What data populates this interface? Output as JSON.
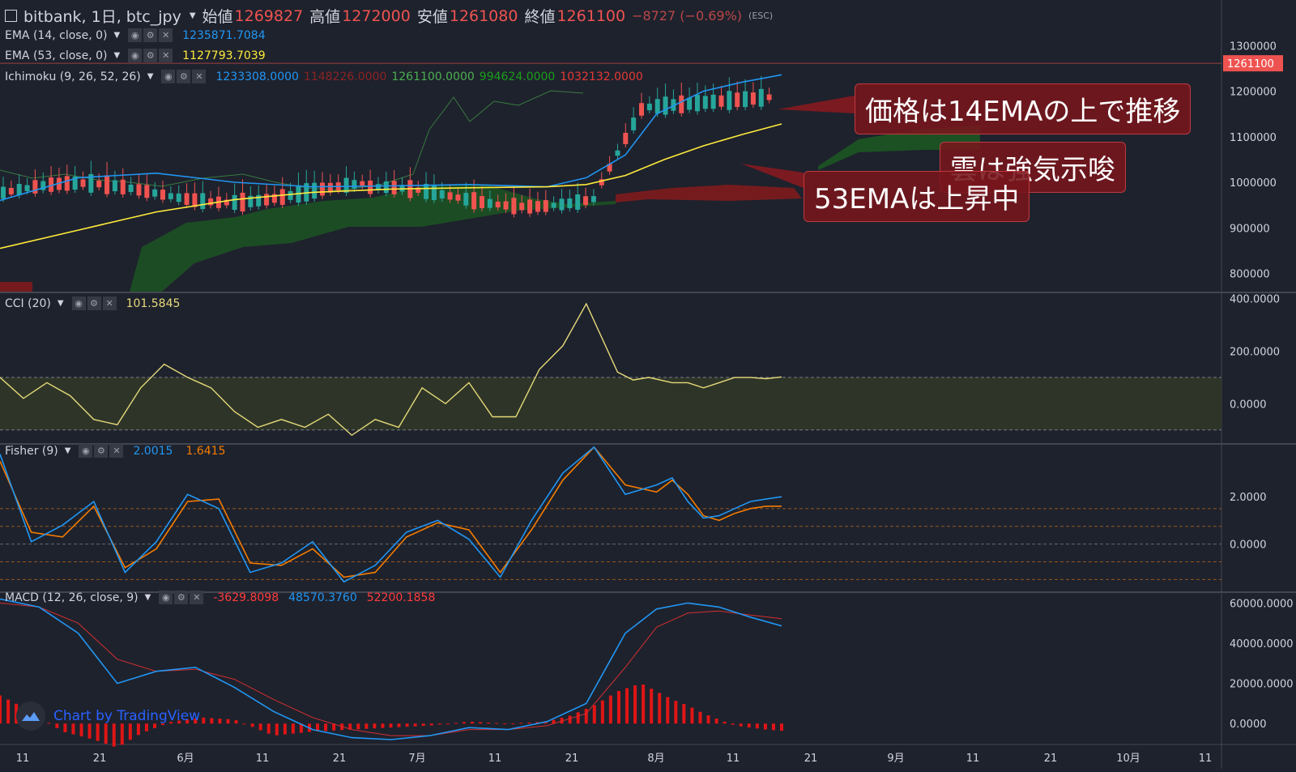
{
  "header": {
    "symbol": "bitbank, 1日, btc_jpy",
    "open_label": "始値",
    "open": "1269827",
    "high_label": "高値",
    "high": "1272000",
    "low_label": "安値",
    "low": "1261080",
    "close_label": "終値",
    "close": "1261100",
    "change": "−8727 (−0.69%)",
    "esc_hint": "(ESC)"
  },
  "legends": {
    "ema14": {
      "name": "EMA (14, close, 0)",
      "value": "1235871.7084",
      "color": "#2196f3"
    },
    "ema53": {
      "name": "EMA (53, close, 0)",
      "value": "1127793.7039",
      "color": "#ffeb3b"
    },
    "ichimoku": {
      "name": "Ichimoku (9, 26, 52, 26)",
      "values": [
        "1233308.0000",
        "1148226.0000",
        "1261100.0000",
        "994624.0000",
        "1032132.0000"
      ],
      "colors": [
        "#2196f3",
        "#8b2323",
        "#4caf50",
        "#1b9e1b",
        "#e53935"
      ]
    },
    "cci": {
      "name": "CCI (20)",
      "value": "101.5845",
      "color": "#e6d979"
    },
    "fisher": {
      "name": "Fisher (9)",
      "values": [
        "2.0015",
        "1.6415"
      ],
      "colors": [
        "#2196f3",
        "#f57c00"
      ]
    },
    "macd": {
      "name": "MACD (12, 26, close, 9)",
      "values": [
        "-3629.8098",
        "48570.3760",
        "52200.1858"
      ],
      "colors": [
        "#ff3b3b",
        "#2196f3",
        "#ff3b3b"
      ]
    }
  },
  "callouts": {
    "price_above_ema": "価格は14EMAの上で推移",
    "cloud_bullish": "雲は強気示唆",
    "ema53_rising": "53EMAは上昇中"
  },
  "watermark": "Chart by TradingView",
  "price_tag": "1261100",
  "x_ticks": [
    "11",
    "21",
    "6月",
    "11",
    "21",
    "7月",
    "11",
    "21",
    "8月",
    "11",
    "21",
    "9月",
    "11",
    "21",
    "10月",
    "11"
  ],
  "chart_data": [
    {
      "type": "line",
      "title": "bitbank, 1日, btc_jpy",
      "ylim": [
        760000,
        1400000
      ],
      "y_ticks": [
        "800000",
        "900000",
        "1000000",
        "1100000",
        "1200000",
        "1300000",
        "1400000"
      ],
      "series": [
        {
          "name": "EMA (14, close, 0)",
          "x": [
            0,
            10,
            20,
            30,
            40,
            50,
            60,
            70,
            75,
            80,
            84,
            90,
            95,
            100
          ],
          "values": [
            960000,
            1010000,
            1020000,
            1000000,
            990000,
            992000,
            995000,
            990000,
            1010000,
            1060000,
            1150000,
            1200000,
            1220000,
            1236000
          ]
        },
        {
          "name": "EMA (53, close, 0)",
          "x": [
            0,
            10,
            20,
            30,
            40,
            50,
            60,
            70,
            75,
            80,
            85,
            90,
            95,
            100
          ],
          "values": [
            855000,
            895000,
            935000,
            962000,
            978000,
            985000,
            988000,
            990000,
            995000,
            1015000,
            1050000,
            1080000,
            1105000,
            1128000
          ]
        }
      ],
      "last_price": 1261100
    },
    {
      "type": "line",
      "title": "CCI (20)",
      "ylim": [
        -150,
        420
      ],
      "y_ticks": [
        "0.0000",
        "200.0000",
        "400.0000"
      ],
      "band": [
        -100,
        100
      ],
      "series": [
        {
          "name": "CCI (20)",
          "x": [
            0,
            3,
            6,
            9,
            12,
            15,
            18,
            21,
            24,
            27,
            30,
            33,
            36,
            39,
            42,
            45,
            48,
            51,
            54,
            57,
            60,
            63,
            66,
            69,
            72,
            75,
            77,
            79,
            81,
            83,
            86,
            88,
            90,
            92,
            94,
            96,
            98,
            100
          ],
          "values": [
            100,
            20,
            80,
            30,
            -60,
            -80,
            60,
            150,
            100,
            60,
            -30,
            -90,
            -60,
            -90,
            -40,
            -120,
            -60,
            -90,
            60,
            0,
            80,
            -50,
            -50,
            130,
            220,
            380,
            250,
            120,
            90,
            100,
            80,
            80,
            60,
            80,
            100,
            100,
            95,
            101.6
          ]
        }
      ]
    },
    {
      "type": "line",
      "title": "Fisher (9)",
      "ylim": [
        -2,
        4.2
      ],
      "y_ticks": [
        "-2.0000",
        "0.0000",
        "2.0000",
        "4.0000"
      ],
      "levels": [
        -1.5,
        -0.75,
        0,
        0.75,
        1.5
      ],
      "series": [
        {
          "name": "Fisher",
          "x": [
            0,
            4,
            8,
            12,
            16,
            20,
            24,
            28,
            32,
            36,
            40,
            44,
            48,
            52,
            56,
            60,
            64,
            68,
            72,
            76,
            80,
            84,
            86,
            88,
            90,
            92,
            94,
            96,
            98,
            100
          ],
          "values": [
            3.8,
            0.1,
            0.8,
            1.8,
            -1.2,
            0.1,
            2.1,
            1.5,
            -1.2,
            -0.8,
            0.1,
            -1.6,
            -0.9,
            0.5,
            1.0,
            0.2,
            -1.4,
            1.0,
            3.0,
            4.1,
            2.1,
            2.5,
            2.8,
            1.8,
            1.1,
            1.2,
            1.5,
            1.8,
            1.9,
            2.0
          ]
        },
        {
          "name": "Signal",
          "x": [
            0,
            4,
            8,
            12,
            16,
            20,
            24,
            28,
            32,
            36,
            40,
            44,
            48,
            52,
            56,
            60,
            64,
            68,
            72,
            76,
            80,
            84,
            86,
            88,
            90,
            92,
            94,
            96,
            98,
            100
          ],
          "values": [
            3.5,
            0.5,
            0.3,
            1.6,
            -1.0,
            -0.2,
            1.8,
            1.9,
            -0.8,
            -0.9,
            -0.2,
            -1.4,
            -1.2,
            0.3,
            0.9,
            0.6,
            -1.2,
            0.6,
            2.7,
            4.1,
            2.5,
            2.2,
            2.7,
            2.1,
            1.2,
            1.0,
            1.3,
            1.5,
            1.6,
            1.6
          ]
        }
      ]
    },
    {
      "type": "line",
      "title": "MACD (12, 26, close, 9)",
      "ylim": [
        -10000,
        65000
      ],
      "y_ticks": [
        "0.0000",
        "20000.0000",
        "40000.0000",
        "60000.0000"
      ],
      "series": [
        {
          "name": "MACD",
          "x": [
            0,
            5,
            10,
            15,
            20,
            25,
            30,
            35,
            40,
            45,
            50,
            55,
            60,
            65,
            70,
            75,
            80,
            84,
            88,
            92,
            96,
            100
          ],
          "values": [
            62000,
            58000,
            45000,
            20000,
            26000,
            28000,
            18000,
            6000,
            -3000,
            -7000,
            -8000,
            -6000,
            -2000,
            -3000,
            1000,
            10000,
            45000,
            57000,
            60000,
            58000,
            53000,
            48570
          ]
        },
        {
          "name": "Signal",
          "x": [
            0,
            5,
            10,
            15,
            20,
            25,
            30,
            35,
            40,
            45,
            50,
            55,
            60,
            65,
            70,
            75,
            80,
            84,
            88,
            92,
            96,
            100
          ],
          "values": [
            60000,
            58000,
            50000,
            32000,
            26000,
            27000,
            22000,
            12000,
            3000,
            -3000,
            -6000,
            -6000,
            -3000,
            -3000,
            -1000,
            5000,
            28000,
            48000,
            55000,
            56000,
            54000,
            52200
          ]
        }
      ],
      "histogram": {
        "x": [
          0,
          4,
          8,
          12,
          15,
          18,
          22,
          26,
          30,
          35,
          40,
          45,
          50,
          55,
          60,
          65,
          70,
          73,
          76,
          79,
          82,
          84,
          86,
          88,
          90,
          92,
          94,
          96,
          98,
          100
        ],
        "values": [
          14000,
          6000,
          -4000,
          -8000,
          -12000,
          -5000,
          1000,
          3000,
          2000,
          -6000,
          -4000,
          -3000,
          -2000,
          -1000,
          1000,
          0,
          1000,
          4000,
          9000,
          16000,
          20000,
          16000,
          12000,
          9000,
          5000,
          2000,
          -1000,
          -2000,
          -3000,
          -3600
        ]
      }
    }
  ]
}
